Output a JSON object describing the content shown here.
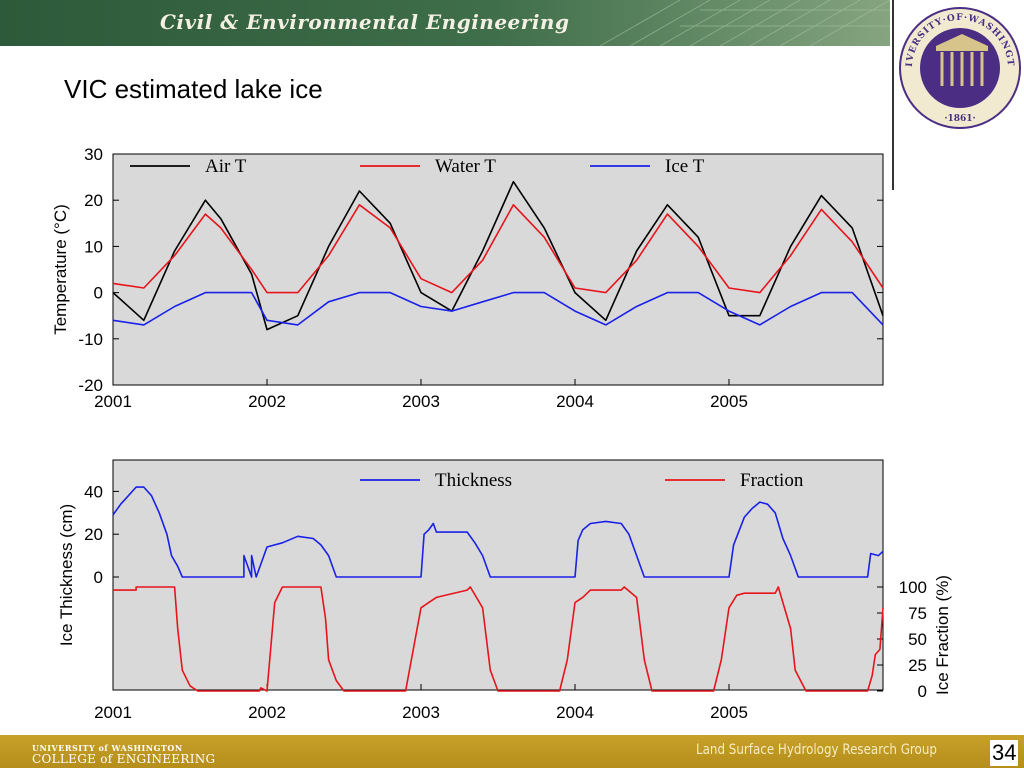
{
  "header": {
    "title": "Civil & Environmental Engineering"
  },
  "seal": {
    "top_text": "UNIVERSITY·OF·WASHINGTON",
    "year": "·1861·"
  },
  "slide": {
    "title": "VIC estimated lake ice",
    "number": "34"
  },
  "footer": {
    "uw": "UNIVERSITY of WASHINGTON",
    "college": "COLLEGE of ENGINEERING",
    "group": "Land Surface Hydrology Research Group"
  },
  "colors": {
    "air_t": "#000000",
    "water_t": "#e8141b",
    "ice_t": "#1a21e8",
    "plot_bg": "#d9d9d9",
    "header_green": "#2d5a3a",
    "footer_gold": "#c7a12a"
  },
  "chart_data": [
    {
      "type": "line",
      "ylabel": "Temperature (°C)",
      "ylim": [
        -20,
        30
      ],
      "yticks": [
        30,
        20,
        10,
        0,
        -10,
        -20
      ],
      "xlim": [
        2001,
        2006
      ],
      "xticks": [
        2001,
        2002,
        2003,
        2004,
        2005
      ],
      "grid": false,
      "legend_position": "top",
      "x": [
        2001.0,
        2001.2,
        2001.4,
        2001.6,
        2001.7,
        2001.9,
        2002.0,
        2002.2,
        2002.4,
        2002.6,
        2002.8,
        2003.0,
        2003.2,
        2003.4,
        2003.6,
        2003.8,
        2004.0,
        2004.2,
        2004.4,
        2004.6,
        2004.8,
        2005.0,
        2005.2,
        2005.4,
        2005.6,
        2005.8,
        2006.0
      ],
      "series": [
        {
          "name": "Air T",
          "color": "#000000",
          "values": [
            0,
            -6,
            9,
            20,
            16,
            4,
            -8,
            -5,
            10,
            22,
            15,
            0,
            -4,
            9,
            24,
            14,
            0,
            -6,
            9,
            19,
            12,
            -5,
            -5,
            10,
            21,
            14,
            -5
          ]
        },
        {
          "name": "Water T",
          "color": "#e8141b",
          "values": [
            2,
            1,
            8,
            17,
            14,
            5,
            0,
            0,
            8,
            19,
            14,
            3,
            0,
            7,
            19,
            12,
            1,
            0,
            7,
            17,
            10,
            1,
            0,
            8,
            18,
            11,
            1
          ]
        },
        {
          "name": "Ice T",
          "color": "#1a21e8",
          "values": [
            -6,
            -7,
            -3,
            0,
            0,
            0,
            -6,
            -7,
            -2,
            0,
            0,
            -3,
            -4,
            -2,
            0,
            0,
            -4,
            -7,
            -3,
            0,
            0,
            -4,
            -7,
            -3,
            0,
            0,
            -7
          ]
        }
      ]
    },
    {
      "type": "line",
      "ylabel": "Ice Thickness (cm)",
      "ylabel_right": "Ice Fraction (%)",
      "ylim": [
        0,
        50
      ],
      "yticks": [
        40,
        20,
        0
      ],
      "yticks_right": [
        100,
        75,
        50,
        25,
        0
      ],
      "xlim": [
        2001,
        2006
      ],
      "xticks": [
        2001,
        2002,
        2003,
        2004,
        2005
      ],
      "grid": false,
      "legend_position": "top",
      "series": [
        {
          "name": "Thickness",
          "color": "#1a21e8",
          "x": [
            2001.0,
            2001.05,
            2001.1,
            2001.15,
            2001.2,
            2001.25,
            2001.3,
            2001.35,
            2001.38,
            2001.42,
            2001.45,
            2001.8,
            2001.85,
            2001.85,
            2001.9,
            2001.9,
            2001.93,
            2002.0,
            2002.1,
            2002.2,
            2002.3,
            2002.35,
            2002.4,
            2002.45,
            2003.0,
            2003.02,
            2003.05,
            2003.08,
            2003.1,
            2003.2,
            2003.3,
            2003.35,
            2003.4,
            2003.45,
            2004.0,
            2004.02,
            2004.05,
            2004.1,
            2004.2,
            2004.3,
            2004.35,
            2004.4,
            2004.45,
            2005.0,
            2005.03,
            2005.1,
            2005.15,
            2005.2,
            2005.25,
            2005.3,
            2005.35,
            2005.4,
            2005.45,
            2005.9,
            2005.92,
            2005.97,
            2006.0
          ],
          "values": [
            29,
            34,
            38,
            42,
            42,
            38,
            30,
            20,
            10,
            5,
            0,
            0,
            0,
            10,
            0,
            10,
            0,
            14,
            16,
            19,
            18,
            15,
            10,
            0,
            0,
            20,
            22,
            25,
            21,
            21,
            21,
            16,
            10,
            0,
            0,
            17,
            22,
            25,
            26,
            25,
            20,
            10,
            0,
            0,
            15,
            28,
            32,
            35,
            34,
            30,
            18,
            10,
            0,
            0,
            11,
            10,
            12
          ]
        },
        {
          "name": "Fraction",
          "color": "#e8141b",
          "x": [
            2001.0,
            2001.15,
            2001.15,
            2001.4,
            2001.42,
            2001.45,
            2001.5,
            2001.55,
            2001.95,
            2001.96,
            2002.0,
            2002.05,
            2002.1,
            2002.35,
            2002.38,
            2002.4,
            2002.45,
            2002.5,
            2002.9,
            2002.95,
            2003.0,
            2003.05,
            2003.1,
            2003.3,
            2003.32,
            2003.4,
            2003.45,
            2003.5,
            2003.9,
            2003.95,
            2004.0,
            2004.05,
            2004.1,
            2004.3,
            2004.32,
            2004.4,
            2004.45,
            2004.5,
            2004.9,
            2004.95,
            2005.0,
            2005.05,
            2005.1,
            2005.3,
            2005.32,
            2005.4,
            2005.43,
            2005.5,
            2005.9,
            2005.93,
            2005.95,
            2005.98,
            2006.0
          ],
          "values": [
            97,
            97,
            100,
            100,
            60,
            20,
            5,
            0,
            0,
            3,
            0,
            85,
            100,
            100,
            70,
            30,
            10,
            0,
            0,
            40,
            80,
            85,
            90,
            97,
            100,
            80,
            20,
            0,
            0,
            30,
            85,
            90,
            97,
            97,
            100,
            90,
            30,
            0,
            0,
            30,
            80,
            92,
            94,
            94,
            100,
            60,
            20,
            0,
            0,
            15,
            35,
            40,
            80
          ]
        }
      ]
    }
  ]
}
